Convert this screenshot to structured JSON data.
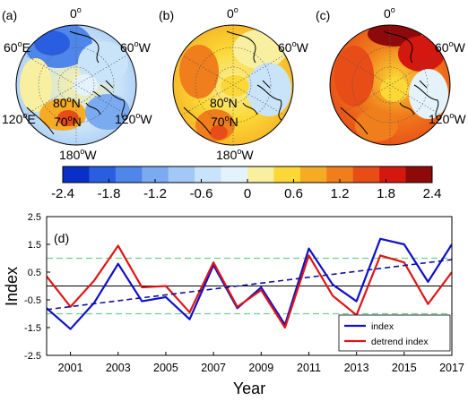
{
  "maps": {
    "panels": [
      {
        "label": "(a)",
        "lon_top": "0",
        "lon_left": "60",
        "lon_left_dir": "E",
        "lon_right": "60",
        "lon_right_dir": "W",
        "lon_bottom_left": "120",
        "lon_bottom_left_dir": "E",
        "lon_bottom_right": "120",
        "lon_bottom_right_dir": "W",
        "lon_bottom": "180",
        "lon_bottom_dir": "W",
        "lat_80": "80",
        "lat_80_dir": "N",
        "lat_70": "70",
        "lat_70_dir": "N",
        "deg": "o"
      },
      {
        "label": "(b)",
        "lon_top": "0",
        "lon_right": "60",
        "lon_right_dir": "W",
        "lon_bottom": "180",
        "lon_bottom_dir": "W",
        "lat_80": "80",
        "lat_80_dir": "N",
        "lat_70": "70",
        "lat_70_dir": "N",
        "deg": "o"
      },
      {
        "label": "(c)",
        "lon_top": "0",
        "lon_right": "60",
        "lon_right_dir": "W",
        "lon_bottom_right": "120",
        "lon_bottom_right_dir": "W",
        "deg": "o"
      }
    ],
    "colorbar": {
      "ticks": [
        "-2.4",
        "-1.8",
        "-1.2",
        "-0.6",
        "0",
        "0.6",
        "1.2",
        "1.8",
        "2.4"
      ],
      "colors": [
        "#0a2fc8",
        "#2a5ee0",
        "#4f86ea",
        "#7aaaf0",
        "#a3c8f5",
        "#c9e3f8",
        "#e4f3fb",
        "#f8f0a0",
        "#fbd835",
        "#f6ab25",
        "#f07e1c",
        "#e84c17",
        "#d4180f",
        "#8e0a0a"
      ]
    }
  },
  "chart_data": {
    "type": "line",
    "panel_label": "(d)",
    "xlabel": "Year",
    "ylabel": "Index",
    "xlim": [
      2000,
      2017
    ],
    "ylim": [
      -2.5,
      2.5
    ],
    "x_ticks": [
      "2001",
      "2003",
      "2005",
      "2007",
      "2009",
      "2011",
      "2013",
      "2015",
      "2017"
    ],
    "y_ticks": [
      "-2.5",
      "-1.5",
      "-0.5",
      "0.5",
      "1.5",
      "2.5"
    ],
    "x": [
      2000,
      2001,
      2002,
      2003,
      2004,
      2005,
      2006,
      2007,
      2008,
      2009,
      2010,
      2011,
      2012,
      2013,
      2014,
      2015,
      2016,
      2017
    ],
    "series": [
      {
        "name": "index",
        "color": "#1010c8",
        "values": [
          -0.8,
          -1.55,
          -0.6,
          0.8,
          -0.55,
          -0.4,
          -1.2,
          0.75,
          -0.8,
          -0.05,
          -1.4,
          1.35,
          0.05,
          -0.55,
          1.7,
          1.5,
          0.15,
          1.5
        ]
      },
      {
        "name": "detrend index",
        "color": "#e01515",
        "values": [
          0.35,
          -0.75,
          0.2,
          1.45,
          -0.05,
          0.0,
          -0.95,
          0.85,
          -0.75,
          -0.15,
          -1.5,
          1.1,
          -0.35,
          -1.05,
          1.1,
          0.85,
          -0.65,
          0.5
        ]
      }
    ],
    "trend": {
      "color": "#1010a0",
      "start": [
        2000,
        -0.85
      ],
      "end": [
        2017,
        0.95
      ]
    },
    "reference_lines": {
      "zero": 0,
      "upper": 1,
      "lower": -1,
      "band_color": "#6fcf8f"
    },
    "legend": {
      "position": "bottom-right"
    }
  }
}
